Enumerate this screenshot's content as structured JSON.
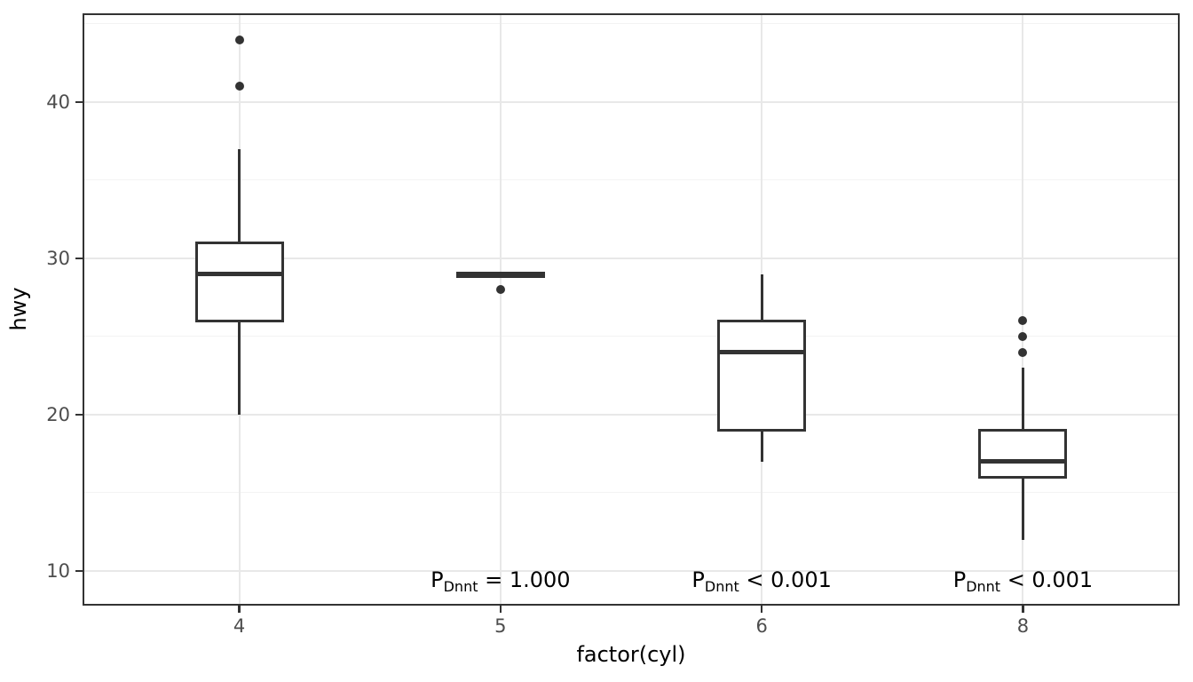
{
  "chart_data": {
    "type": "boxplot",
    "title": "",
    "xlabel": "factor(cyl)",
    "ylabel": "hwy",
    "categories": [
      "4",
      "5",
      "6",
      "8"
    ],
    "y_ticks": [
      10,
      20,
      30,
      40
    ],
    "y_minor_ticks": [
      15,
      25,
      35,
      45
    ],
    "ylim": [
      7.78,
      45.68
    ],
    "grid": true,
    "legend": "none",
    "series": [
      {
        "category": "4",
        "lower_whisker": 20,
        "q1": 26,
        "median": 29,
        "q3": 31,
        "upper_whisker": 37,
        "outliers": [
          41,
          44
        ]
      },
      {
        "category": "5",
        "lower_whisker": 29,
        "q1": 29,
        "median": 29,
        "q3": 29,
        "upper_whisker": 29,
        "outliers": [
          28
        ]
      },
      {
        "category": "6",
        "lower_whisker": 17,
        "q1": 19,
        "median": 24,
        "q3": 26,
        "upper_whisker": 29,
        "outliers": []
      },
      {
        "category": "8",
        "lower_whisker": 12,
        "q1": 16,
        "median": 17,
        "q3": 19,
        "upper_whisker": 23,
        "outliers": [
          24,
          25,
          26
        ]
      }
    ],
    "annotations": [
      {
        "category": "5",
        "base": "P",
        "subscript": "Dnnt",
        "text": "= 1.000",
        "y": 9.4
      },
      {
        "category": "6",
        "base": "P",
        "subscript": "Dnnt",
        "text": "< 0.001",
        "y": 9.4
      },
      {
        "category": "8",
        "base": "P",
        "subscript": "Dnnt",
        "text": "< 0.001",
        "y": 9.4
      }
    ],
    "colors": {
      "stroke": "#333333",
      "box_fill": "#ffffff",
      "grid_major": "#e8e8e8",
      "grid_minor": "#f3f3f3",
      "axis_text": "#4d4d4d",
      "axis_title": "#000000",
      "panel_border": "#333333",
      "annotation_text": "#000000",
      "background": "#ffffff"
    }
  }
}
